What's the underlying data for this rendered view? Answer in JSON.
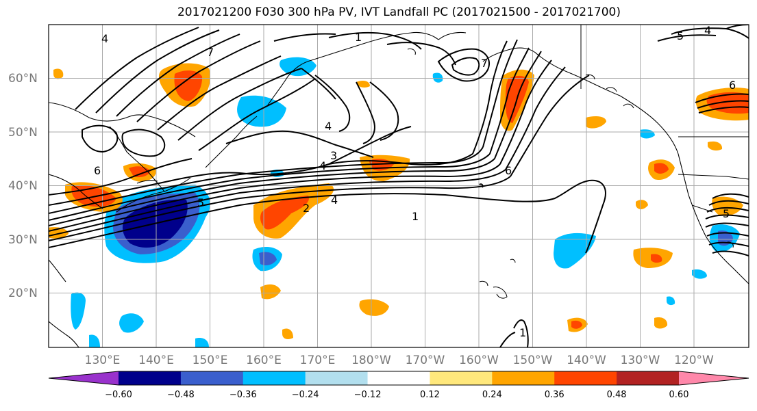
{
  "title": "2017021200 F030 300 hPa PV, IVT Landfall PC (2017021500 - 2017021700)",
  "latitude_labels": [
    "60°N",
    "50°N",
    "40°N",
    "30°N",
    "20°N"
  ],
  "longitude_labels": [
    "130°E",
    "140°E",
    "150°E",
    "160°E",
    "170°E",
    "180°W",
    "170°W",
    "160°W",
    "150°W",
    "140°W",
    "130°W",
    "120°W"
  ],
  "contour_labels": [
    "1",
    "2",
    "3",
    "4",
    "5",
    "6",
    "7"
  ],
  "colorbar": {
    "colors": [
      "#9932cc",
      "#00008b",
      "#3a5fcd",
      "#00bfff",
      "#b2dfee",
      "#ffffff",
      "#ffe87c",
      "#ffa500",
      "#ff4500",
      "#b22222",
      "#ff88aa"
    ],
    "tick_labels": [
      "−0.60",
      "−0.48",
      "−0.36",
      "−0.24",
      "−0.12",
      "0.12",
      "0.24",
      "0.36",
      "0.48",
      "0.60"
    ]
  }
}
